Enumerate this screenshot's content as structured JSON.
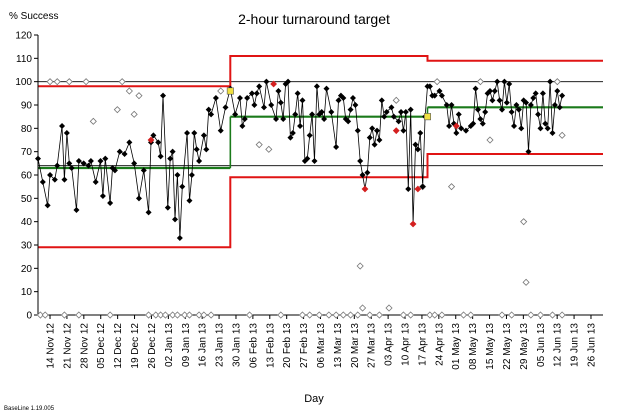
{
  "chart_data": {
    "type": "line",
    "title": "2-hour turnaround target",
    "ylabel": "% Success",
    "xlabel": "Day",
    "footer": "BaseLine 1.19.005",
    "ylim": [
      0,
      120
    ],
    "yticks": [
      0,
      10,
      20,
      30,
      40,
      50,
      60,
      70,
      80,
      90,
      100,
      110,
      120
    ],
    "xlim": [
      0,
      235
    ],
    "grid": false,
    "reference_lines": [
      64,
      100
    ],
    "xtick_labels": [
      "14 Nov 12",
      "21 Nov 12",
      "28 Nov 12",
      "05 Dec 12",
      "12 Dec 12",
      "19 Dec 12",
      "26 Dec 12",
      "02 Jan 13",
      "09 Jan 13",
      "16 Jan 13",
      "23 Jan 13",
      "30 Jan 13",
      "06 Feb 13",
      "13 Feb 13",
      "20 Feb 13",
      "27 Feb 13",
      "06 Mar 13",
      "13 Mar 13",
      "20 Mar 13",
      "27 Mar 13",
      "03 Apr 13",
      "10 Apr 13",
      "17 Apr 13",
      "24 Apr 13",
      "01 May 13",
      "08 May 13",
      "15 May 13",
      "22 May 13",
      "29 May 13",
      "05 Jun 13",
      "12 Jun 13",
      "19 Jun 13",
      "26 Jun 13"
    ],
    "phases": [
      {
        "start": 0,
        "end": 80,
        "mean": 63,
        "upper": 98,
        "lower": 29
      },
      {
        "start": 80,
        "end": 162,
        "mean": 85,
        "upper": 111,
        "lower": 59
      },
      {
        "start": 162,
        "end": 235,
        "mean": 89,
        "upper": 109,
        "lower": 69
      }
    ],
    "series": [
      {
        "values": [
          [
            0,
            67
          ],
          [
            2,
            57
          ],
          [
            4,
            47
          ],
          [
            5,
            60
          ],
          [
            7,
            58
          ],
          [
            8,
            64
          ],
          [
            10,
            81
          ],
          [
            11,
            58
          ],
          [
            12,
            78
          ],
          [
            13,
            65
          ],
          [
            14,
            63
          ],
          [
            16,
            45
          ],
          [
            17,
            66
          ],
          [
            19,
            65
          ],
          [
            21,
            64
          ],
          [
            22,
            66
          ],
          [
            24,
            57
          ],
          [
            26,
            66
          ],
          [
            27,
            51
          ],
          [
            28,
            67
          ],
          [
            30,
            48
          ],
          [
            31,
            63
          ],
          [
            32,
            62
          ],
          [
            34,
            70
          ],
          [
            36,
            69
          ],
          [
            38,
            74
          ],
          [
            40,
            65
          ],
          [
            42,
            50
          ],
          [
            44,
            62
          ],
          [
            46,
            44
          ],
          [
            47,
            74
          ],
          [
            48,
            77
          ],
          [
            50,
            74
          ],
          [
            51,
            68
          ],
          [
            52,
            94
          ],
          [
            54,
            46
          ],
          [
            55,
            67
          ],
          [
            56,
            70
          ],
          [
            57,
            41
          ],
          [
            58,
            60
          ],
          [
            59,
            33
          ],
          [
            60,
            55
          ],
          [
            62,
            78
          ],
          [
            63,
            49
          ],
          [
            64,
            60
          ],
          [
            65,
            78
          ],
          [
            66,
            71
          ],
          [
            67,
            66
          ],
          [
            69,
            77
          ],
          [
            70,
            71
          ],
          [
            71,
            88
          ],
          [
            72,
            86
          ],
          [
            74,
            93
          ],
          [
            76,
            79
          ],
          [
            78,
            89
          ],
          [
            80,
            97
          ],
          [
            82,
            86
          ],
          [
            84,
            93
          ],
          [
            85,
            81
          ],
          [
            86,
            84
          ],
          [
            87,
            93
          ],
          [
            89,
            95
          ],
          [
            90,
            90
          ],
          [
            91,
            95
          ],
          [
            92,
            98
          ],
          [
            94,
            89
          ],
          [
            95,
            100
          ],
          [
            97,
            90
          ],
          [
            99,
            84
          ],
          [
            100,
            96
          ],
          [
            101,
            91
          ],
          [
            102,
            84
          ],
          [
            103,
            99
          ],
          [
            104,
            100
          ],
          [
            105,
            76
          ],
          [
            106,
            78
          ],
          [
            107,
            86
          ],
          [
            108,
            95
          ],
          [
            109,
            81
          ],
          [
            110,
            92
          ],
          [
            111,
            66
          ],
          [
            112,
            67
          ],
          [
            113,
            77
          ],
          [
            114,
            86
          ],
          [
            115,
            66
          ],
          [
            116,
            98
          ],
          [
            117,
            86
          ],
          [
            118,
            87
          ],
          [
            119,
            84
          ],
          [
            120,
            97
          ],
          [
            122,
            87
          ],
          [
            124,
            72
          ],
          [
            125,
            92
          ],
          [
            126,
            94
          ],
          [
            127,
            93
          ],
          [
            128,
            84
          ],
          [
            129,
            83
          ],
          [
            130,
            88
          ],
          [
            131,
            93
          ],
          [
            132,
            90
          ],
          [
            133,
            79
          ],
          [
            134,
            66
          ],
          [
            135,
            60
          ],
          [
            136,
            54
          ],
          [
            137,
            61
          ],
          [
            138,
            76
          ],
          [
            139,
            80
          ],
          [
            140,
            73
          ],
          [
            141,
            79
          ],
          [
            142,
            75
          ],
          [
            143,
            92
          ],
          [
            144,
            85
          ],
          [
            145,
            87
          ],
          [
            147,
            89
          ],
          [
            148,
            85
          ],
          [
            150,
            83
          ],
          [
            151,
            87
          ],
          [
            152,
            79
          ],
          [
            153,
            87
          ],
          [
            154,
            54
          ],
          [
            155,
            88
          ],
          [
            156,
            39
          ],
          [
            157,
            73
          ],
          [
            158,
            71
          ],
          [
            159,
            78
          ],
          [
            160,
            55
          ],
          [
            161,
            85
          ],
          [
            162,
            98
          ],
          [
            163,
            98
          ],
          [
            164,
            94
          ],
          [
            165,
            94
          ],
          [
            167,
            96
          ],
          [
            168,
            94
          ],
          [
            170,
            90
          ],
          [
            171,
            81
          ],
          [
            172,
            90
          ],
          [
            173,
            82
          ],
          [
            174,
            78
          ],
          [
            175,
            86
          ],
          [
            176,
            80
          ],
          [
            178,
            79
          ],
          [
            180,
            81
          ],
          [
            181,
            82
          ],
          [
            182,
            97
          ],
          [
            183,
            88
          ],
          [
            184,
            84
          ],
          [
            185,
            82
          ],
          [
            186,
            87
          ],
          [
            187,
            95
          ],
          [
            188,
            96
          ],
          [
            189,
            92
          ],
          [
            190,
            96
          ],
          [
            191,
            100
          ],
          [
            192,
            92
          ],
          [
            193,
            88
          ],
          [
            194,
            100
          ],
          [
            195,
            91
          ],
          [
            196,
            99
          ],
          [
            197,
            87
          ],
          [
            198,
            81
          ],
          [
            199,
            90
          ],
          [
            200,
            88
          ],
          [
            201,
            80
          ],
          [
            202,
            92
          ],
          [
            203,
            91
          ],
          [
            204,
            70
          ],
          [
            205,
            90
          ],
          [
            206,
            93
          ],
          [
            207,
            95
          ],
          [
            208,
            86
          ],
          [
            209,
            80
          ],
          [
            210,
            95
          ],
          [
            211,
            82
          ],
          [
            212,
            80
          ],
          [
            213,
            100
          ],
          [
            214,
            78
          ],
          [
            215,
            90
          ],
          [
            216,
            96
          ],
          [
            217,
            89
          ],
          [
            218,
            94
          ]
        ]
      }
    ],
    "special_points": [
      {
        "x": 47,
        "y": 75,
        "color": "#d41f1f"
      },
      {
        "x": 98,
        "y": 99,
        "color": "#d41f1f"
      },
      {
        "x": 136,
        "y": 54,
        "color": "#d41f1f"
      },
      {
        "x": 149,
        "y": 79,
        "color": "#d41f1f"
      },
      {
        "x": 156,
        "y": 39,
        "color": "#d41f1f"
      },
      {
        "x": 158,
        "y": 54,
        "color": "#d41f1f"
      },
      {
        "x": 174,
        "y": 81,
        "color": "#d41f1f"
      },
      {
        "x": 80,
        "y": 96,
        "color": "#f0e040"
      },
      {
        "x": 162,
        "y": 85,
        "color": "#f0e040"
      }
    ],
    "excluded_points": [
      [
        1,
        0
      ],
      [
        3,
        0
      ],
      [
        5,
        100
      ],
      [
        8,
        100
      ],
      [
        11,
        0
      ],
      [
        13,
        100
      ],
      [
        17,
        0
      ],
      [
        20,
        100
      ],
      [
        23,
        83
      ],
      [
        30,
        0
      ],
      [
        33,
        88
      ],
      [
        35,
        100
      ],
      [
        38,
        96
      ],
      [
        40,
        86
      ],
      [
        42,
        94
      ],
      [
        46,
        0
      ],
      [
        49,
        0
      ],
      [
        51,
        0
      ],
      [
        53,
        0
      ],
      [
        56,
        0
      ],
      [
        58,
        0
      ],
      [
        61,
        0
      ],
      [
        63,
        0
      ],
      [
        67,
        0
      ],
      [
        69,
        0
      ],
      [
        72,
        0
      ],
      [
        76,
        96
      ],
      [
        88,
        0
      ],
      [
        92,
        73
      ],
      [
        96,
        71
      ],
      [
        101,
        0
      ],
      [
        110,
        0
      ],
      [
        113,
        0
      ],
      [
        117,
        0
      ],
      [
        121,
        0
      ],
      [
        124,
        0
      ],
      [
        127,
        0
      ],
      [
        130,
        0
      ],
      [
        133,
        0
      ],
      [
        134,
        21
      ],
      [
        135,
        3
      ],
      [
        138,
        0
      ],
      [
        142,
        0
      ],
      [
        146,
        3
      ],
      [
        149,
        92
      ],
      [
        152,
        0
      ],
      [
        155,
        0
      ],
      [
        160,
        55
      ],
      [
        163,
        0
      ],
      [
        165,
        0
      ],
      [
        166,
        100
      ],
      [
        168,
        0
      ],
      [
        172,
        55
      ],
      [
        177,
        0
      ],
      [
        180,
        0
      ],
      [
        184,
        100
      ],
      [
        188,
        75
      ],
      [
        193,
        0
      ],
      [
        197,
        0
      ],
      [
        202,
        40
      ],
      [
        203,
        14
      ],
      [
        205,
        0
      ],
      [
        209,
        0
      ],
      [
        214,
        0
      ],
      [
        216,
        100
      ],
      [
        218,
        0
      ],
      [
        218,
        77
      ]
    ],
    "colors": {
      "data_line": "#000000",
      "mean_line": "#1a7a1a",
      "control_limits": "#e01414",
      "reference_lines": "#000000",
      "axes": "#000000"
    }
  }
}
